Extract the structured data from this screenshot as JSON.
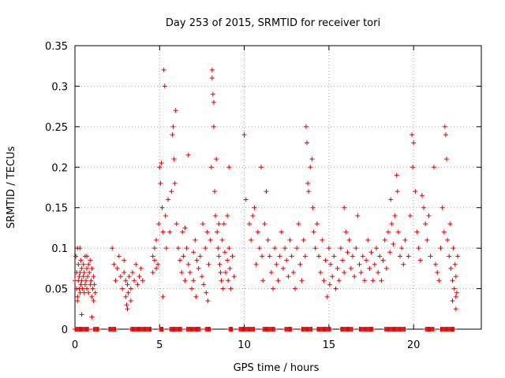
{
  "chart_data": {
    "type": "scatter",
    "title": "Day 253 of 2015, SRMTID for receiver tori",
    "xlabel": "GPS time / hours",
    "ylabel": "SRMTID / TECUs",
    "xlim": [
      0,
      24
    ],
    "ylim": [
      0,
      0.35
    ],
    "xticks": [
      0,
      5,
      10,
      15,
      20
    ],
    "xtick_labels": [
      "0",
      "5",
      "10",
      "15",
      "20"
    ],
    "yticks": [
      0,
      0.05,
      0.1,
      0.15,
      0.2,
      0.25,
      0.3,
      0.35
    ],
    "ytick_labels": [
      "0",
      "0.05",
      "0.1",
      "0.15",
      "0.2",
      "0.25",
      "0.3",
      "0.35"
    ],
    "grid": true,
    "marker": "+",
    "color": "#e00000",
    "series": [
      {
        "name": "SRMTID",
        "points": [
          [
            0.0,
            0.06
          ],
          [
            0.05,
            0.09
          ],
          [
            0.1,
            0.05
          ],
          [
            0.1,
            0.07
          ],
          [
            0.15,
            0.04
          ],
          [
            0.15,
            0.1
          ],
          [
            0.2,
            0.06
          ],
          [
            0.2,
            0.08
          ],
          [
            0.25,
            0.05
          ],
          [
            0.25,
            0.065
          ],
          [
            0.3,
            0.07
          ],
          [
            0.3,
            0.045
          ],
          [
            0.35,
            0.055
          ],
          [
            0.35,
            0.085
          ],
          [
            0.4,
            0.06
          ],
          [
            0.4,
            0.075
          ],
          [
            0.45,
            0.05
          ],
          [
            0.5,
            0.065
          ],
          [
            0.5,
            0.08
          ],
          [
            0.55,
            0.045
          ],
          [
            0.55,
            0.07
          ],
          [
            0.6,
            0.055
          ],
          [
            0.6,
            0.09
          ],
          [
            0.65,
            0.06
          ],
          [
            0.7,
            0.075
          ],
          [
            0.7,
            0.05
          ],
          [
            0.75,
            0.065
          ],
          [
            0.8,
            0.08
          ],
          [
            0.8,
            0.045
          ],
          [
            0.85,
            0.07
          ],
          [
            0.9,
            0.055
          ],
          [
            0.9,
            0.085
          ],
          [
            0.95,
            0.06
          ],
          [
            1.0,
            0.04
          ],
          [
            1.0,
            0.075
          ],
          [
            1.05,
            0.05
          ],
          [
            1.1,
            0.065
          ],
          [
            1.1,
            0.035
          ],
          [
            1.15,
            0.055
          ],
          [
            1.2,
            0.045
          ],
          [
            0.4,
            0.018
          ],
          [
            1.0,
            0.015
          ],
          [
            0.3,
            0.1
          ],
          [
            0.7,
            0.09
          ],
          [
            0.15,
            0.035
          ],
          [
            2.2,
            0.1
          ],
          [
            2.3,
            0.08
          ],
          [
            2.4,
            0.06
          ],
          [
            2.5,
            0.075
          ],
          [
            2.6,
            0.09
          ],
          [
            2.7,
            0.065
          ],
          [
            2.8,
            0.05
          ],
          [
            2.9,
            0.07
          ],
          [
            3.0,
            0.04
          ],
          [
            3.0,
            0.06
          ],
          [
            3.05,
            0.03
          ],
          [
            3.1,
            0.055
          ],
          [
            3.15,
            0.045
          ],
          [
            3.2,
            0.065
          ],
          [
            3.3,
            0.05
          ],
          [
            3.4,
            0.07
          ],
          [
            3.5,
            0.06
          ],
          [
            3.6,
            0.08
          ],
          [
            3.7,
            0.055
          ],
          [
            3.8,
            0.065
          ],
          [
            3.9,
            0.075
          ],
          [
            4.0,
            0.06
          ],
          [
            2.9,
            0.085
          ],
          [
            3.1,
            0.025
          ],
          [
            3.3,
            0.035
          ],
          [
            4.6,
            0.09
          ],
          [
            4.6,
            0.07
          ],
          [
            4.7,
            0.085
          ],
          [
            4.7,
            0.1
          ],
          [
            4.8,
            0.075
          ],
          [
            4.8,
            0.11
          ],
          [
            4.9,
            0.08
          ],
          [
            4.95,
            0.13
          ],
          [
            5.0,
            0.2
          ],
          [
            5.05,
            0.18
          ],
          [
            5.1,
            0.205
          ],
          [
            5.15,
            0.15
          ],
          [
            5.2,
            0.12
          ],
          [
            5.2,
            0.04
          ],
          [
            5.25,
            0.32
          ],
          [
            5.3,
            0.3
          ],
          [
            5.35,
            0.14
          ],
          [
            5.4,
            0.1
          ],
          [
            5.5,
            0.16
          ],
          [
            5.6,
            0.12
          ],
          [
            5.7,
            0.17
          ],
          [
            5.75,
            0.24
          ],
          [
            5.8,
            0.25
          ],
          [
            5.85,
            0.21
          ],
          [
            5.9,
            0.18
          ],
          [
            5.95,
            0.27
          ],
          [
            6.0,
            0.13
          ],
          [
            6.1,
            0.1
          ],
          [
            6.2,
            0.085
          ],
          [
            6.3,
            0.07
          ],
          [
            6.35,
            0.12
          ],
          [
            6.4,
            0.09
          ],
          [
            6.5,
            0.06
          ],
          [
            6.5,
            0.125
          ],
          [
            6.6,
            0.1
          ],
          [
            6.7,
            0.08
          ],
          [
            6.7,
            0.215
          ],
          [
            6.8,
            0.07
          ],
          [
            6.9,
            0.05
          ],
          [
            7.0,
            0.095
          ],
          [
            7.0,
            0.06
          ],
          [
            7.1,
            0.11
          ],
          [
            7.15,
            0.04
          ],
          [
            7.2,
            0.085
          ],
          [
            7.3,
            0.075
          ],
          [
            7.4,
            0.09
          ],
          [
            7.5,
            0.065
          ],
          [
            7.55,
            0.13
          ],
          [
            7.6,
            0.055
          ],
          [
            7.7,
            0.1
          ],
          [
            7.75,
            0.045
          ],
          [
            7.8,
            0.12
          ],
          [
            7.85,
            0.035
          ],
          [
            7.9,
            0.08
          ],
          [
            8.0,
            0.11
          ],
          [
            8.05,
            0.2
          ],
          [
            8.1,
            0.32
          ],
          [
            8.1,
            0.31
          ],
          [
            8.15,
            0.29
          ],
          [
            8.2,
            0.25
          ],
          [
            8.2,
            0.28
          ],
          [
            8.25,
            0.17
          ],
          [
            8.3,
            0.14
          ],
          [
            8.35,
            0.21
          ],
          [
            8.4,
            0.12
          ],
          [
            8.45,
            0.1
          ],
          [
            8.5,
            0.09
          ],
          [
            8.55,
            0.08
          ],
          [
            8.6,
            0.07
          ],
          [
            8.65,
            0.06
          ],
          [
            8.7,
            0.11
          ],
          [
            8.75,
            0.05
          ],
          [
            8.8,
            0.13
          ],
          [
            8.85,
            0.095
          ],
          [
            8.9,
            0.07
          ],
          [
            9.0,
            0.085
          ],
          [
            9.05,
            0.06
          ],
          [
            9.1,
            0.1
          ],
          [
            9.15,
            0.075
          ],
          [
            9.2,
            0.05
          ],
          [
            9.3,
            0.09
          ],
          [
            9.4,
            0.065
          ],
          [
            9.0,
            0.14
          ],
          [
            9.1,
            0.2
          ],
          [
            8.5,
            0.13
          ],
          [
            10.0,
            0.24
          ],
          [
            10.1,
            0.16
          ],
          [
            10.3,
            0.13
          ],
          [
            10.4,
            0.11
          ],
          [
            10.5,
            0.14
          ],
          [
            10.6,
            0.15
          ],
          [
            10.7,
            0.08
          ],
          [
            10.8,
            0.12
          ],
          [
            10.9,
            0.1
          ],
          [
            11.0,
            0.2
          ],
          [
            11.05,
            0.09
          ],
          [
            11.1,
            0.06
          ],
          [
            11.2,
            0.13
          ],
          [
            11.3,
            0.17
          ],
          [
            11.4,
            0.11
          ],
          [
            11.5,
            0.09
          ],
          [
            11.6,
            0.07
          ],
          [
            11.7,
            0.05
          ],
          [
            11.8,
            0.1
          ],
          [
            11.9,
            0.08
          ],
          [
            12.0,
            0.06
          ],
          [
            12.1,
            0.09
          ],
          [
            12.2,
            0.12
          ],
          [
            12.3,
            0.075
          ],
          [
            12.4,
            0.1
          ],
          [
            12.5,
            0.085
          ],
          [
            12.6,
            0.065
          ],
          [
            12.7,
            0.11
          ],
          [
            12.8,
            0.09
          ],
          [
            12.9,
            0.07
          ],
          [
            13.0,
            0.05
          ],
          [
            13.1,
            0.1
          ],
          [
            13.2,
            0.13
          ],
          [
            13.3,
            0.08
          ],
          [
            13.4,
            0.06
          ],
          [
            13.5,
            0.11
          ],
          [
            13.6,
            0.09
          ],
          [
            13.65,
            0.25
          ],
          [
            13.7,
            0.23
          ],
          [
            13.75,
            0.18
          ],
          [
            13.8,
            0.17
          ],
          [
            13.9,
            0.2
          ],
          [
            14.0,
            0.21
          ],
          [
            14.05,
            0.15
          ],
          [
            14.1,
            0.12
          ],
          [
            14.2,
            0.1
          ],
          [
            14.3,
            0.13
          ],
          [
            14.4,
            0.09
          ],
          [
            14.5,
            0.07
          ],
          [
            14.6,
            0.11
          ],
          [
            14.7,
            0.06
          ],
          [
            14.8,
            0.085
          ],
          [
            14.9,
            0.04
          ],
          [
            15.0,
            0.1
          ],
          [
            15.05,
            0.055
          ],
          [
            15.1,
            0.08
          ],
          [
            15.2,
            0.065
          ],
          [
            15.3,
            0.09
          ],
          [
            15.4,
            0.05
          ],
          [
            15.5,
            0.075
          ],
          [
            15.6,
            0.06
          ],
          [
            15.7,
            0.1
          ],
          [
            15.8,
            0.085
          ],
          [
            15.9,
            0.07
          ],
          [
            15.9,
            0.15
          ],
          [
            16.0,
            0.12
          ],
          [
            16.1,
            0.095
          ],
          [
            16.2,
            0.11
          ],
          [
            16.3,
            0.075
          ],
          [
            16.4,
            0.09
          ],
          [
            16.5,
            0.065
          ],
          [
            16.6,
            0.1
          ],
          [
            16.7,
            0.14
          ],
          [
            16.8,
            0.08
          ],
          [
            16.9,
            0.07
          ],
          [
            17.0,
            0.09
          ],
          [
            17.1,
            0.06
          ],
          [
            17.2,
            0.085
          ],
          [
            17.3,
            0.11
          ],
          [
            17.4,
            0.075
          ],
          [
            17.5,
            0.095
          ],
          [
            17.6,
            0.06
          ],
          [
            17.7,
            0.08
          ],
          [
            17.8,
            0.1
          ],
          [
            17.9,
            0.07
          ],
          [
            18.0,
            0.09
          ],
          [
            18.1,
            0.06
          ],
          [
            18.2,
            0.085
          ],
          [
            18.3,
            0.11
          ],
          [
            18.4,
            0.075
          ],
          [
            18.5,
            0.12
          ],
          [
            18.6,
            0.095
          ],
          [
            18.65,
            0.16
          ],
          [
            18.7,
            0.13
          ],
          [
            18.8,
            0.105
          ],
          [
            18.9,
            0.14
          ],
          [
            19.0,
            0.19
          ],
          [
            19.05,
            0.17
          ],
          [
            19.1,
            0.12
          ],
          [
            19.2,
            0.09
          ],
          [
            19.3,
            0.1
          ],
          [
            19.4,
            0.08
          ],
          [
            19.5,
            0.11
          ],
          [
            19.7,
            0.09
          ],
          [
            19.8,
            0.14
          ],
          [
            19.9,
            0.24
          ],
          [
            19.95,
            0.2
          ],
          [
            20.0,
            0.23
          ],
          [
            20.1,
            0.17
          ],
          [
            20.2,
            0.12
          ],
          [
            20.3,
            0.1
          ],
          [
            20.4,
            0.085
          ],
          [
            20.5,
            0.165
          ],
          [
            20.6,
            0.15
          ],
          [
            20.7,
            0.13
          ],
          [
            20.8,
            0.11
          ],
          [
            20.9,
            0.14
          ],
          [
            21.0,
            0.09
          ],
          [
            21.2,
            0.2
          ],
          [
            21.3,
            0.08
          ],
          [
            21.4,
            0.07
          ],
          [
            21.5,
            0.06
          ],
          [
            21.6,
            0.1
          ],
          [
            21.7,
            0.15
          ],
          [
            21.8,
            0.12
          ],
          [
            21.85,
            0.25
          ],
          [
            21.9,
            0.24
          ],
          [
            21.95,
            0.21
          ],
          [
            22.0,
            0.11
          ],
          [
            22.1,
            0.09
          ],
          [
            22.15,
            0.13
          ],
          [
            22.2,
            0.075
          ],
          [
            22.3,
            0.06
          ],
          [
            22.35,
            0.1
          ],
          [
            22.4,
            0.05
          ],
          [
            22.45,
            0.08
          ],
          [
            22.5,
            0.04
          ],
          [
            22.5,
            0.065
          ],
          [
            22.55,
            0.045
          ],
          [
            22.6,
            0.09
          ],
          [
            22.3,
            0.035
          ],
          [
            22.5,
            0.025
          ]
        ]
      }
    ],
    "zero_band": {
      "y": 0,
      "segments": [
        [
          0.0,
          0.8
        ],
        [
          1.1,
          1.4
        ],
        [
          2.0,
          2.4
        ],
        [
          3.3,
          4.5
        ],
        [
          5.0,
          5.2
        ],
        [
          5.6,
          6.3
        ],
        [
          6.6,
          7.4
        ],
        [
          7.7,
          8.0
        ],
        [
          9.1,
          9.3
        ],
        [
          9.7,
          10.6
        ],
        [
          11.1,
          11.8
        ],
        [
          12.4,
          12.8
        ],
        [
          13.4,
          14.0
        ],
        [
          14.3,
          15.1
        ],
        [
          15.7,
          16.4
        ],
        [
          16.8,
          17.6
        ],
        [
          18.3,
          19.5
        ],
        [
          20.7,
          21.2
        ],
        [
          21.6,
          22.4
        ]
      ]
    }
  }
}
